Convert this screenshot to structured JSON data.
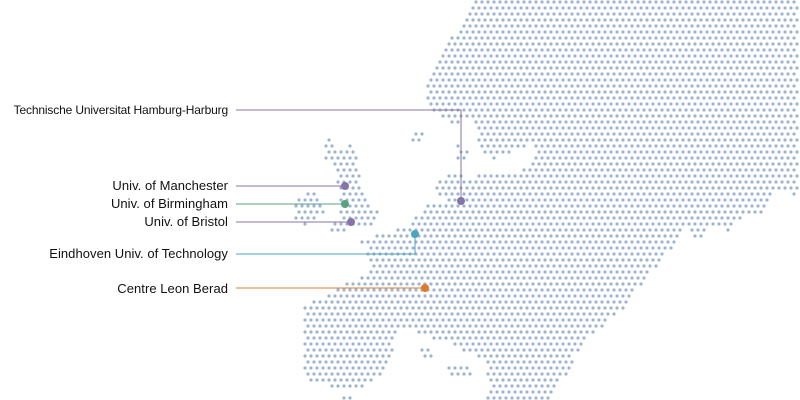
{
  "colors": {
    "dot_map": "#9fb4cf",
    "purple": "#8574a8",
    "green": "#5aa27c",
    "teal": "#4aa6bd",
    "orange": "#de7a2e"
  },
  "locations": [
    {
      "name": "Technische Universitat Hamburg-Harburg",
      "color": "purple"
    },
    {
      "name": "Univ. of Manchester",
      "color": "purple"
    },
    {
      "name": "Univ. of Birmingham",
      "color": "green"
    },
    {
      "name": "Univ. of Bristol",
      "color": "purple"
    },
    {
      "name": "Eindhoven Univ. of Technology",
      "color": "teal"
    },
    {
      "name": "Centre Leon Berad",
      "color": "orange"
    }
  ]
}
